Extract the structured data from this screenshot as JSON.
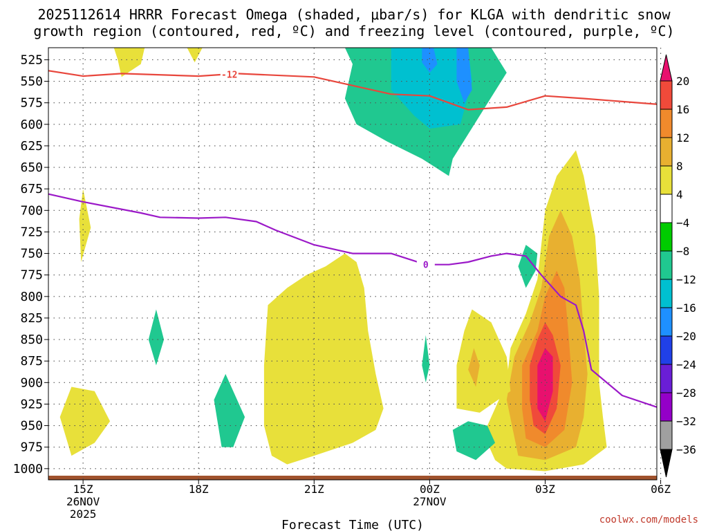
{
  "header": {
    "title_line1": "2025112614 HRRR Forecast Omega (shaded, μbar/s) for KLGA with dendritic snow",
    "title_line2": "growth region (contoured, red, ºC) and freezing level (contoured, purple, ºC)"
  },
  "credit": "coolwx.com/models",
  "chart_data": {
    "type": "heatmap",
    "title": "2025112614 HRRR Forecast Omega (shaded, μbar/s) for KLGA with dendritic snow growth region (contoured, red, ºC) and freezing level (contoured, purple, ºC)",
    "xlabel": "Forecast Time (UTC)",
    "ylabel": "Pressure (hPa)",
    "x_range_hours": [
      -0.9,
      14.9
    ],
    "y_range_hpa": [
      1013,
      511
    ],
    "y_ticks": [
      "525",
      "550",
      "575",
      "600",
      "625",
      "650",
      "675",
      "700",
      "725",
      "750",
      "775",
      "800",
      "825",
      "850",
      "875",
      "900",
      "925",
      "950",
      "975",
      "1000"
    ],
    "x_ticks": [
      {
        "hour": 0,
        "label": "15Z",
        "sub1": "26NOV",
        "sub2": "2025"
      },
      {
        "hour": 3,
        "label": "18Z",
        "sub1": "",
        "sub2": ""
      },
      {
        "hour": 6,
        "label": "21Z",
        "sub1": "",
        "sub2": ""
      },
      {
        "hour": 9,
        "label": "00Z",
        "sub1": "27NOV",
        "sub2": ""
      },
      {
        "hour": 12,
        "label": "03Z",
        "sub1": "",
        "sub2": ""
      },
      {
        "hour": 15,
        "label": "06Z",
        "sub1": "",
        "sub2": ""
      }
    ],
    "colorbar": {
      "labels": [
        "20",
        "16",
        "12",
        "8",
        "4",
        "−4",
        "−8",
        "−12",
        "−16",
        "−20",
        "−24",
        "−28",
        "−32",
        "−36"
      ],
      "bins": [
        {
          "range": "<-36",
          "color": "#000000"
        },
        {
          "range": "-36..-32",
          "color": "#a0a0a0"
        },
        {
          "range": "-32..-28",
          "color": "#9400c8"
        },
        {
          "range": "-28..-24",
          "color": "#6a1ed6"
        },
        {
          "range": "-24..-20",
          "color": "#2040e8"
        },
        {
          "range": "-20..-16",
          "color": "#1e90ff"
        },
        {
          "range": "-16..-12",
          "color": "#00c0d0"
        },
        {
          "range": "-12..-8",
          "color": "#20c890"
        },
        {
          "range": "-8..-4",
          "color": "#00cc00"
        },
        {
          "range": "-4..4",
          "color": "#ffffff"
        },
        {
          "range": "4..8",
          "color": "#e8e03a"
        },
        {
          "range": "8..12",
          "color": "#e8b030"
        },
        {
          "range": "12..16",
          "color": "#f08a2c"
        },
        {
          "range": "16..20",
          "color": "#f04a3a"
        },
        {
          "range": ">20",
          "color": "#e8106e"
        }
      ]
    },
    "omega_regions": [
      {
        "level": "-12..-8",
        "points": [
          [
            6.8,
            511
          ],
          [
            10.6,
            511
          ],
          [
            11.0,
            540
          ],
          [
            10.3,
            590
          ],
          [
            9.6,
            640
          ],
          [
            9.5,
            660
          ],
          [
            8.8,
            640
          ],
          [
            7.9,
            620
          ],
          [
            7.1,
            600
          ],
          [
            6.8,
            570
          ],
          [
            7.0,
            530
          ]
        ]
      },
      {
        "level": "-16..-12",
        "points": [
          [
            8.0,
            511
          ],
          [
            10.0,
            511
          ],
          [
            10.1,
            550
          ],
          [
            9.8,
            600
          ],
          [
            9.0,
            605
          ],
          [
            8.6,
            590
          ],
          [
            8.0,
            560
          ]
        ]
      },
      {
        "level": "-20..-16",
        "points": [
          [
            8.8,
            511
          ],
          [
            9.1,
            511
          ],
          [
            9.2,
            530
          ],
          [
            9.0,
            540
          ],
          [
            8.8,
            528
          ]
        ]
      },
      {
        "level": "-20..-16",
        "points": [
          [
            9.7,
            511
          ],
          [
            10.0,
            511
          ],
          [
            10.1,
            560
          ],
          [
            9.9,
            575
          ],
          [
            9.7,
            550
          ]
        ]
      },
      {
        "level": "4..8",
        "points": [
          [
            11.0,
            1000
          ],
          [
            12.0,
            1003
          ],
          [
            13.0,
            995
          ],
          [
            13.6,
            975
          ],
          [
            13.5,
            940
          ],
          [
            13.4,
            900
          ],
          [
            13.4,
            850
          ],
          [
            13.4,
            800
          ],
          [
            13.3,
            730
          ],
          [
            13.0,
            660
          ],
          [
            12.8,
            630
          ],
          [
            12.3,
            660
          ],
          [
            12.0,
            700
          ],
          [
            11.8,
            780
          ],
          [
            11.5,
            820
          ],
          [
            11.1,
            860
          ],
          [
            11.0,
            900
          ],
          [
            10.6,
            940
          ],
          [
            10.4,
            960
          ],
          [
            10.7,
            990
          ]
        ]
      },
      {
        "level": "8..12",
        "points": [
          [
            11.3,
            985
          ],
          [
            12.0,
            990
          ],
          [
            12.8,
            975
          ],
          [
            13.0,
            940
          ],
          [
            13.1,
            890
          ],
          [
            13.0,
            840
          ],
          [
            12.9,
            780
          ],
          [
            12.7,
            730
          ],
          [
            12.4,
            700
          ],
          [
            12.1,
            730
          ],
          [
            11.9,
            790
          ],
          [
            11.6,
            830
          ],
          [
            11.2,
            870
          ],
          [
            11.0,
            920
          ]
        ]
      },
      {
        "level": "12..16",
        "points": [
          [
            11.5,
            965
          ],
          [
            12.0,
            975
          ],
          [
            12.5,
            955
          ],
          [
            12.7,
            900
          ],
          [
            12.6,
            840
          ],
          [
            12.5,
            790
          ],
          [
            12.3,
            770
          ],
          [
            12.0,
            800
          ],
          [
            11.8,
            840
          ],
          [
            11.4,
            880
          ],
          [
            11.4,
            930
          ]
        ]
      },
      {
        "level": "16..20",
        "points": [
          [
            11.7,
            950
          ],
          [
            12.0,
            960
          ],
          [
            12.3,
            930
          ],
          [
            12.4,
            880
          ],
          [
            12.2,
            845
          ],
          [
            12.0,
            830
          ],
          [
            11.8,
            850
          ],
          [
            11.6,
            880
          ],
          [
            11.6,
            920
          ]
        ]
      },
      {
        "level": ">20",
        "points": [
          [
            11.8,
            930
          ],
          [
            12.0,
            945
          ],
          [
            12.2,
            910
          ],
          [
            12.2,
            870
          ],
          [
            12.0,
            860
          ],
          [
            11.8,
            880
          ],
          [
            11.8,
            905
          ]
        ]
      },
      {
        "level": "4..8",
        "points": [
          [
            4.7,
            950
          ],
          [
            4.9,
            985
          ],
          [
            5.3,
            995
          ],
          [
            6.0,
            985
          ],
          [
            7.0,
            970
          ],
          [
            7.6,
            955
          ],
          [
            7.8,
            930
          ],
          [
            7.6,
            890
          ],
          [
            7.4,
            840
          ],
          [
            7.3,
            790
          ],
          [
            7.1,
            760
          ],
          [
            6.8,
            750
          ],
          [
            6.3,
            765
          ],
          [
            5.8,
            775
          ],
          [
            5.3,
            790
          ],
          [
            4.8,
            810
          ],
          [
            4.7,
            880
          ]
        ]
      },
      {
        "level": "4..8",
        "points": [
          [
            9.7,
            930
          ],
          [
            10.3,
            935
          ],
          [
            11.1,
            910
          ],
          [
            11.0,
            870
          ],
          [
            10.6,
            830
          ],
          [
            10.1,
            815
          ],
          [
            9.9,
            840
          ],
          [
            9.7,
            880
          ]
        ]
      },
      {
        "level": "8..12",
        "points": [
          [
            10.0,
            885
          ],
          [
            10.2,
            905
          ],
          [
            10.3,
            880
          ],
          [
            10.15,
            860
          ]
        ]
      },
      {
        "level": "-12..-8",
        "points": [
          [
            10.7,
            970
          ],
          [
            10.5,
            950
          ],
          [
            10.0,
            945
          ],
          [
            9.6,
            955
          ],
          [
            9.7,
            980
          ],
          [
            10.2,
            990
          ]
        ]
      },
      {
        "level": "-12..-8",
        "points": [
          [
            11.5,
            740
          ],
          [
            11.3,
            765
          ],
          [
            11.5,
            790
          ],
          [
            11.75,
            770
          ],
          [
            11.8,
            750
          ]
        ]
      },
      {
        "level": "-12..-8",
        "points": [
          [
            3.7,
            890
          ],
          [
            3.4,
            920
          ],
          [
            3.6,
            975
          ],
          [
            3.9,
            975
          ],
          [
            4.2,
            940
          ]
        ]
      },
      {
        "level": "-12..-8",
        "points": [
          [
            1.9,
            815
          ],
          [
            1.7,
            850
          ],
          [
            1.9,
            880
          ],
          [
            2.1,
            850
          ]
        ]
      },
      {
        "level": "-12..-8",
        "points": [
          [
            8.9,
            845
          ],
          [
            8.8,
            880
          ],
          [
            8.9,
            900
          ],
          [
            9.0,
            880
          ]
        ]
      },
      {
        "level": "4..8",
        "points": [
          [
            -0.3,
            905
          ],
          [
            -0.6,
            940
          ],
          [
            -0.3,
            985
          ],
          [
            0.3,
            970
          ],
          [
            0.7,
            945
          ],
          [
            0.3,
            910
          ]
        ]
      },
      {
        "level": "4..8",
        "points": [
          [
            0.0,
            675
          ],
          [
            -0.1,
            710
          ],
          [
            -0.05,
            760
          ],
          [
            0.2,
            720
          ]
        ]
      },
      {
        "level": "4..8",
        "points": [
          [
            0.8,
            511
          ],
          [
            1.6,
            511
          ],
          [
            1.5,
            530
          ],
          [
            1.0,
            545
          ],
          [
            0.9,
            525
          ]
        ]
      },
      {
        "level": "4..8",
        "points": [
          [
            2.7,
            511
          ],
          [
            3.1,
            511
          ],
          [
            2.9,
            528
          ]
        ]
      },
      {
        "level": "4..8",
        "points": [
          [
            15.9,
            820
          ],
          [
            15.8,
            850
          ],
          [
            15.9,
            880
          ],
          [
            16.1,
            850
          ]
        ]
      },
      {
        "level": "4..8",
        "points": [
          [
            17.9,
            980
          ],
          [
            17.5,
            985
          ],
          [
            17.2,
            960
          ],
          [
            17.0,
            900
          ],
          [
            16.8,
            820
          ],
          [
            16.7,
            700
          ],
          [
            16.8,
            640
          ],
          [
            17.1,
            560
          ],
          [
            17.6,
            511
          ],
          [
            17.9,
            511
          ]
        ]
      },
      {
        "level": "8..12",
        "points": [
          [
            17.9,
            960
          ],
          [
            17.7,
            945
          ],
          [
            17.4,
            900
          ],
          [
            17.3,
            820
          ],
          [
            17.3,
            700
          ],
          [
            17.5,
            620
          ],
          [
            17.8,
            560
          ],
          [
            17.9,
            540
          ]
        ]
      },
      {
        "level": "12..16",
        "points": [
          [
            17.9,
            840
          ],
          [
            17.7,
            780
          ],
          [
            17.5,
            720
          ],
          [
            17.6,
            650
          ],
          [
            17.9,
            600
          ]
        ]
      },
      {
        "level": "-12..-8",
        "points": [
          [
            16.6,
            511
          ],
          [
            17.1,
            511
          ],
          [
            17.0,
            540
          ],
          [
            16.9,
            560
          ],
          [
            16.6,
            530
          ]
        ]
      },
      {
        "level": "4..8",
        "points": [
          [
            17.95,
            511
          ],
          [
            18.1,
            511
          ],
          [
            18.1,
            1000
          ],
          [
            17.95,
            990
          ]
        ]
      }
    ],
    "series": [
      {
        "name": "-12 ºC isotherm (DGZ)",
        "color": "#e8463c",
        "label": "-12",
        "label_at": [
          3.8,
          542
        ],
        "x": [
          -1.0,
          0.0,
          1.0,
          3.0,
          4.0,
          6.0,
          8.0,
          9.0,
          10.0,
          11.0,
          12.0,
          13.0,
          15.0,
          16.0,
          17.0,
          18.0
        ],
        "y": [
          537,
          544,
          541,
          544,
          541,
          545,
          565,
          567,
          583,
          580,
          567,
          570,
          577,
          577,
          580,
          568
        ]
      },
      {
        "name": "0 ºC isotherm (freezing level)",
        "color": "#9b19c8",
        "label": "0",
        "label_at": [
          8.9,
          763
        ],
        "x": [
          -1.0,
          0.0,
          1.5,
          2.0,
          3.0,
          3.7,
          4.5,
          5.0,
          6.0,
          7.0,
          8.0,
          8.9,
          9.5,
          10.0,
          10.6,
          11.0,
          11.5,
          11.9,
          12.4,
          12.8,
          13.0,
          13.2,
          14.0,
          15.0,
          16.0,
          17.0,
          18.0
        ],
        "y": [
          680,
          690,
          703,
          708,
          709,
          708,
          713,
          723,
          740,
          750,
          750,
          763,
          763,
          760,
          753,
          750,
          753,
          775,
          800,
          810,
          840,
          885,
          915,
          930,
          940,
          955,
          962
        ]
      }
    ]
  }
}
